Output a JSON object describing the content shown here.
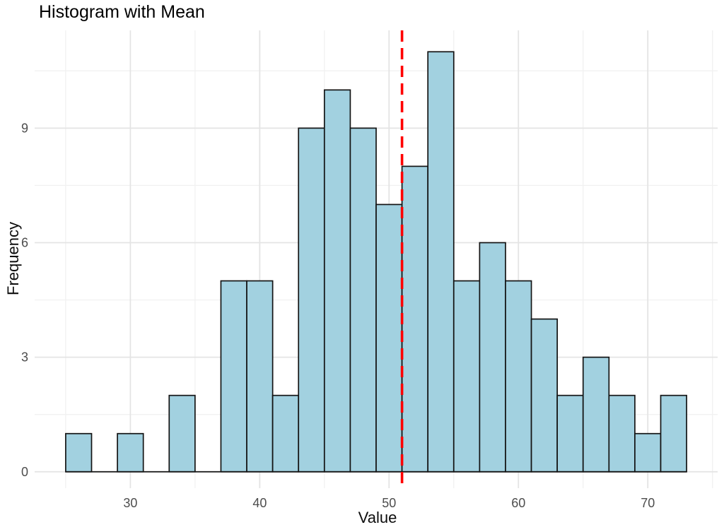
{
  "chart_data": {
    "type": "bar",
    "subtype": "histogram",
    "title": "Histogram with Mean",
    "xlabel": "Value",
    "ylabel": "Frequency",
    "bins": {
      "start": 25,
      "width": 2,
      "counts": [
        1,
        0,
        1,
        0,
        2,
        0,
        5,
        5,
        2,
        9,
        10,
        9,
        7,
        8,
        11,
        5,
        6,
        5,
        4,
        2,
        3,
        2,
        1,
        2
      ]
    },
    "mean_line": {
      "x": 51,
      "color": "#FF0000",
      "style": "dashed"
    },
    "x_ticks": [
      30,
      40,
      50,
      60,
      70
    ],
    "y_ticks": [
      0,
      3,
      6,
      9
    ],
    "x_minor_gridlines": [
      25,
      35,
      45,
      55,
      65,
      75
    ],
    "y_minor_gridlines": [
      1.5,
      4.5,
      7.5,
      10.5
    ],
    "xlim": [
      22.6,
      75.4
    ],
    "ylim": [
      -0.43,
      11.56
    ],
    "grid": true,
    "legend": false,
    "colors": {
      "bar_fill": "#A2D1E0",
      "bar_stroke": "#141414",
      "grid_major": "#E4E4E4",
      "grid_minor": "#F1F1F1",
      "tick_label": "#4D4D4D",
      "axis_title": "#0D0D0D",
      "title": "#000000",
      "background": "#FFFFFF"
    }
  }
}
